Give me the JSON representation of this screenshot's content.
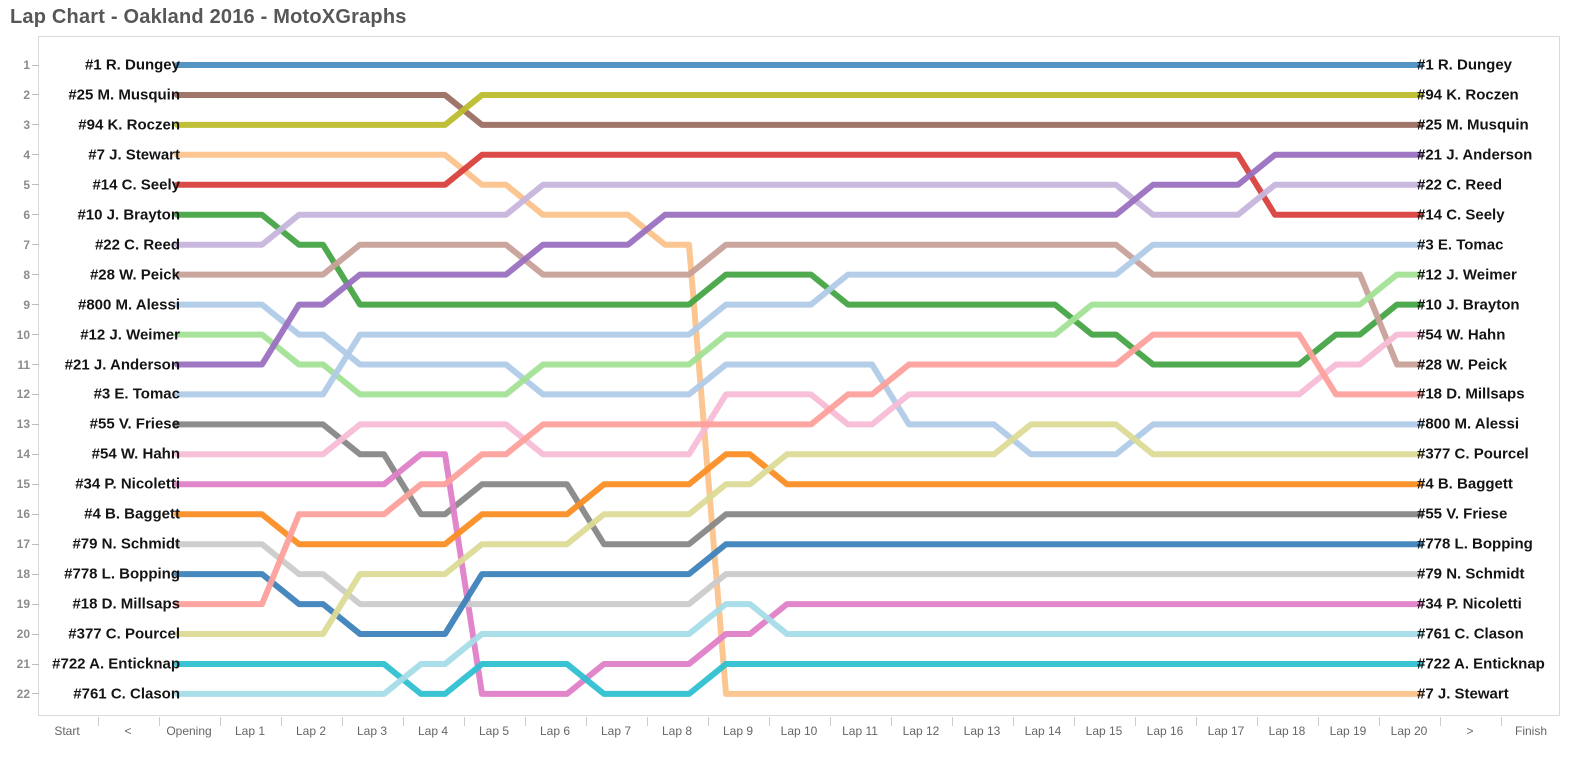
{
  "title": "Lap Chart - Oakland 2016 - MotoXGraphs",
  "axis": {
    "labels": [
      "Start",
      "<",
      "Opening",
      "Lap 1",
      "Lap 2",
      "Lap 3",
      "Lap 4",
      "Lap 5",
      "Lap 6",
      "Lap 7",
      "Lap 8",
      "Lap 9",
      "Lap 10",
      "Lap 11",
      "Lap 12",
      "Lap 13",
      "Lap 14",
      "Lap 15",
      "Lap 16",
      "Lap 17",
      "Lap 18",
      "Lap 19",
      "Lap 20",
      ">",
      "Finish"
    ],
    "nav_prev": "<",
    "nav_next": ">"
  },
  "chart_data": {
    "type": "line",
    "subtype": "bump-chart",
    "x_categories": [
      "Opening",
      "Lap 1",
      "Lap 2",
      "Lap 3",
      "Lap 4",
      "Lap 5",
      "Lap 6",
      "Lap 7",
      "Lap 8",
      "Lap 9",
      "Lap 10",
      "Lap 11",
      "Lap 12",
      "Lap 13",
      "Lap 14",
      "Lap 15",
      "Lap 16",
      "Lap 17",
      "Lap 18",
      "Lap 19",
      "Lap 20"
    ],
    "y_axis": "position (1 = leader, 22 = last)",
    "ylim": [
      1,
      22
    ],
    "grid": false,
    "legend": "rider names listed at both line ends",
    "series": [
      {
        "label": "#1 R. Dungey",
        "color": "#4a8fc0",
        "positions": [
          1,
          1,
          1,
          1,
          1,
          1,
          1,
          1,
          1,
          1,
          1,
          1,
          1,
          1,
          1,
          1,
          1,
          1,
          1,
          1,
          1
        ]
      },
      {
        "label": "#25 M. Musquin",
        "color": "#9b6f63",
        "positions": [
          2,
          2,
          2,
          2,
          2,
          3,
          3,
          3,
          3,
          3,
          3,
          3,
          3,
          3,
          3,
          3,
          3,
          3,
          3,
          3,
          3
        ]
      },
      {
        "label": "#94 K. Roczen",
        "color": "#bcbd2c",
        "positions": [
          3,
          3,
          3,
          3,
          3,
          2,
          2,
          2,
          2,
          2,
          2,
          2,
          2,
          2,
          2,
          2,
          2,
          2,
          2,
          2,
          2
        ]
      },
      {
        "label": "#7 J. Stewart",
        "color": "#fbc38b",
        "positions": [
          4,
          4,
          4,
          4,
          4,
          5,
          6,
          6,
          7,
          22,
          22,
          22,
          22,
          22,
          22,
          22,
          22,
          22,
          22,
          22,
          22
        ]
      },
      {
        "label": "#14 C. Seely",
        "color": "#d8403d",
        "positions": [
          5,
          5,
          5,
          5,
          5,
          4,
          4,
          4,
          4,
          4,
          4,
          4,
          4,
          4,
          4,
          4,
          4,
          4,
          6,
          6,
          6
        ]
      },
      {
        "label": "#10 J. Brayton",
        "color": "#46a446",
        "positions": [
          6,
          6,
          7,
          9,
          9,
          9,
          9,
          9,
          9,
          8,
          8,
          9,
          9,
          9,
          9,
          10,
          11,
          11,
          11,
          10,
          9
        ]
      },
      {
        "label": "#22 C. Reed",
        "color": "#c7b5dc",
        "positions": [
          7,
          7,
          6,
          6,
          6,
          6,
          5,
          5,
          5,
          5,
          5,
          5,
          5,
          5,
          5,
          5,
          6,
          6,
          5,
          5,
          5
        ]
      },
      {
        "label": "#28 W. Peick",
        "color": "#c7a199",
        "positions": [
          8,
          8,
          8,
          7,
          7,
          7,
          8,
          8,
          8,
          7,
          7,
          7,
          7,
          7,
          7,
          7,
          8,
          8,
          8,
          8,
          11
        ]
      },
      {
        "label": "#800 M. Alessi",
        "color": "#b0cbe8",
        "positions": [
          9,
          9,
          10,
          11,
          11,
          11,
          12,
          12,
          12,
          11,
          11,
          11,
          13,
          13,
          14,
          14,
          13,
          13,
          13,
          13,
          13
        ]
      },
      {
        "label": "#12 J. Weimer",
        "color": "#a2e296",
        "positions": [
          10,
          10,
          11,
          12,
          12,
          12,
          11,
          11,
          11,
          10,
          10,
          10,
          10,
          10,
          10,
          9,
          9,
          9,
          9,
          9,
          8
        ]
      },
      {
        "label": "#21 J. Anderson",
        "color": "#9a70c0",
        "positions": [
          11,
          11,
          9,
          8,
          8,
          8,
          7,
          7,
          6,
          6,
          6,
          6,
          6,
          6,
          6,
          6,
          5,
          5,
          4,
          4,
          4
        ]
      },
      {
        "label": "#3 E. Tomac",
        "color": "#b0cbe8",
        "positions": [
          12,
          12,
          12,
          10,
          10,
          10,
          10,
          10,
          10,
          9,
          9,
          8,
          8,
          8,
          8,
          8,
          7,
          7,
          7,
          7,
          7
        ]
      },
      {
        "label": "#55 V. Friese",
        "color": "#878787",
        "positions": [
          13,
          13,
          13,
          14,
          16,
          15,
          15,
          17,
          17,
          16,
          16,
          16,
          16,
          16,
          16,
          16,
          16,
          16,
          16,
          16,
          16
        ]
      },
      {
        "label": "#54 W. Hahn",
        "color": "#f7bcd6",
        "positions": [
          14,
          14,
          14,
          13,
          13,
          13,
          14,
          14,
          14,
          12,
          12,
          13,
          12,
          12,
          12,
          12,
          12,
          12,
          12,
          11,
          10
        ]
      },
      {
        "label": "#34 P. Nicoletti",
        "color": "#e07fc8",
        "positions": [
          15,
          15,
          15,
          15,
          14,
          22,
          22,
          21,
          21,
          20,
          19,
          19,
          19,
          19,
          19,
          19,
          19,
          19,
          19,
          19,
          19
        ]
      },
      {
        "label": "#4 B. Baggett",
        "color": "#fb8e24",
        "positions": [
          16,
          16,
          17,
          17,
          17,
          16,
          16,
          15,
          15,
          14,
          15,
          15,
          15,
          15,
          15,
          15,
          15,
          15,
          15,
          15,
          15
        ]
      },
      {
        "label": "#79 N. Schmidt",
        "color": "#cbcbcb",
        "positions": [
          17,
          17,
          18,
          19,
          19,
          19,
          19,
          19,
          19,
          18,
          18,
          18,
          18,
          18,
          18,
          18,
          18,
          18,
          18,
          18,
          18
        ]
      },
      {
        "label": "#778 L. Bopping",
        "color": "#3d83ba",
        "positions": [
          18,
          18,
          19,
          20,
          20,
          18,
          18,
          18,
          18,
          17,
          17,
          17,
          17,
          17,
          17,
          17,
          17,
          17,
          17,
          17,
          17
        ]
      },
      {
        "label": "#18 D. Millsaps",
        "color": "#fda09b",
        "positions": [
          19,
          19,
          16,
          16,
          15,
          14,
          13,
          13,
          13,
          13,
          13,
          12,
          11,
          11,
          11,
          11,
          10,
          10,
          10,
          12,
          12
        ]
      },
      {
        "label": "#377 C. Pourcel",
        "color": "#dcdb96",
        "positions": [
          20,
          20,
          20,
          18,
          18,
          17,
          17,
          16,
          16,
          15,
          14,
          14,
          14,
          14,
          13,
          13,
          14,
          14,
          14,
          14,
          14
        ]
      },
      {
        "label": "#722 A. Enticknap",
        "color": "#2fc0d1",
        "positions": [
          21,
          21,
          21,
          21,
          22,
          21,
          21,
          22,
          22,
          21,
          21,
          21,
          21,
          21,
          21,
          21,
          21,
          21,
          21,
          21,
          21
        ]
      },
      {
        "label": "#761 C. Clason",
        "color": "#a5dce8",
        "positions": [
          22,
          22,
          22,
          22,
          21,
          20,
          20,
          20,
          20,
          19,
          20,
          20,
          20,
          20,
          20,
          20,
          20,
          20,
          20,
          20,
          20
        ]
      }
    ],
    "start_order_labels": [
      "#1 R. Dungey",
      "#25 M. Musquin",
      "#94 K. Roczen",
      "#7 J. Stewart",
      "#14 C. Seely",
      "#10 J. Brayton",
      "#22 C. Reed",
      "#28 W. Peick",
      "#800 M. Alessi",
      "#12 J. Weimer",
      "#21 J. Anderson",
      "#3 E. Tomac",
      "#55 V. Friese",
      "#54 W. Hahn",
      "#34 P. Nicoletti",
      "#4 B. Baggett",
      "#79 N. Schmidt",
      "#778 L. Bopping",
      "#18 D. Millsaps",
      "#377 C. Pourcel",
      "#722 A. Enticknap",
      "#761 C. Clason"
    ],
    "finish_order_labels": [
      "#1 R. Dungey",
      "#94 K. Roczen",
      "#25 M. Musquin",
      "#21 J. Anderson",
      "#22 C. Reed",
      "#14 C. Seely",
      "#3 E. Tomac",
      "#12 J. Weimer",
      "#10 J. Brayton",
      "#54 W. Hahn",
      "#28 W. Peick",
      "#18 D. Millsaps",
      "#800 M. Alessi",
      "#377 C. Pourcel",
      "#4 B. Baggett",
      "#55 V. Friese",
      "#778 L. Bopping",
      "#79 N. Schmidt",
      "#34 P. Nicoletti",
      "#761 C. Clason",
      "#722 A. Enticknap",
      "#7 J. Stewart"
    ],
    "row_numbers": [
      1,
      2,
      3,
      4,
      5,
      6,
      7,
      8,
      9,
      10,
      11,
      12,
      13,
      14,
      15,
      16,
      17,
      18,
      19,
      20,
      21,
      22
    ]
  },
  "layout_colors": {
    "title_color": "#575757",
    "frame_border": "#d9d9d9",
    "row_number_color": "#8c8c8c",
    "axis_label_color": "#666666"
  }
}
